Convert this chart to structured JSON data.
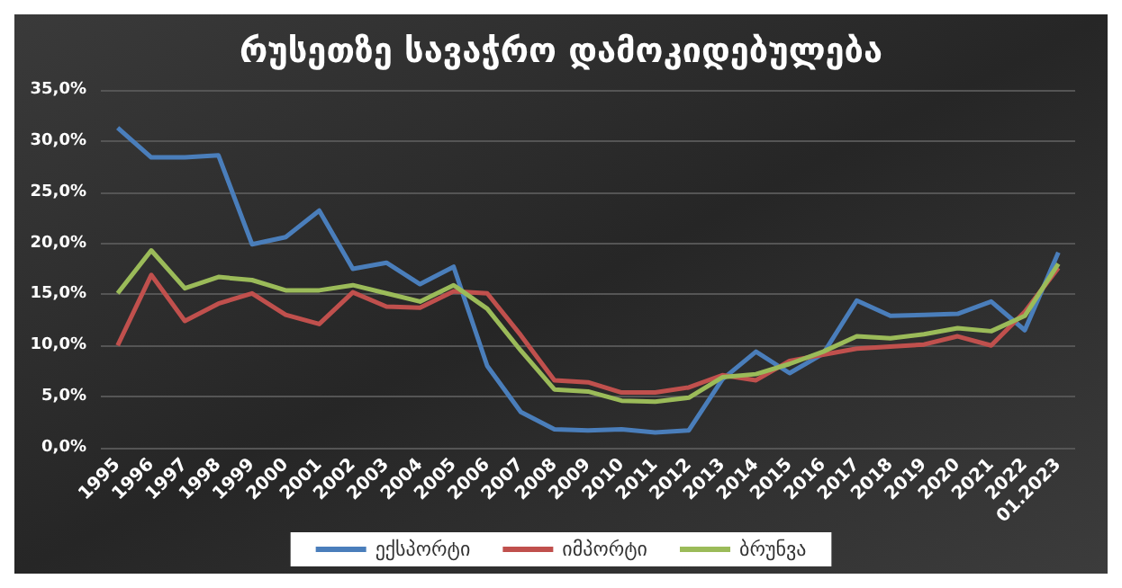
{
  "chart_data": {
    "type": "line",
    "title": "რუსეთზე სავაჭრო დამოკიდებულება",
    "categories": [
      "1995",
      "1996",
      "1997",
      "1998",
      "1999",
      "2000",
      "2001",
      "2002",
      "2003",
      "2004",
      "2005",
      "2006",
      "2007",
      "2008",
      "2009",
      "2010",
      "2011",
      "2012",
      "2013",
      "2014",
      "2015",
      "2016",
      "2017",
      "2018",
      "2019",
      "2020",
      "2021",
      "2022",
      "01.2023"
    ],
    "series": [
      {
        "name": "ექსპორტი",
        "color": "#4a7ebb",
        "values": [
          31.3,
          28.4,
          28.4,
          28.6,
          19.9,
          20.6,
          23.2,
          17.5,
          18.1,
          16.0,
          17.7,
          8.0,
          3.5,
          1.8,
          1.7,
          1.8,
          1.5,
          1.7,
          6.7,
          9.4,
          7.3,
          9.2,
          14.4,
          12.9,
          13.0,
          13.1,
          14.3,
          11.5,
          19.1
        ]
      },
      {
        "name": "იმპორტი",
        "color": "#c0504d",
        "values": [
          10.0,
          16.9,
          12.4,
          14.1,
          15.1,
          13.0,
          12.1,
          15.2,
          13.8,
          13.7,
          15.3,
          15.1,
          11.0,
          6.6,
          6.4,
          5.4,
          5.4,
          5.9,
          7.1,
          6.6,
          8.5,
          9.1,
          9.7,
          9.9,
          10.1,
          10.9,
          10.0,
          13.3,
          17.6
        ]
      },
      {
        "name": "ბრუნვა",
        "color": "#9bbb59",
        "values": [
          15.1,
          19.3,
          15.6,
          16.7,
          16.4,
          15.4,
          15.4,
          15.9,
          15.1,
          14.3,
          15.9,
          13.6,
          9.5,
          5.7,
          5.5,
          4.6,
          4.5,
          4.9,
          6.9,
          7.2,
          8.2,
          9.4,
          10.9,
          10.7,
          11.1,
          11.7,
          11.4,
          12.9,
          18.0
        ]
      }
    ],
    "ylim": [
      0,
      35
    ],
    "yticks": [
      {
        "value": 0,
        "label": "0,0%"
      },
      {
        "value": 5,
        "label": "5,0%"
      },
      {
        "value": 10,
        "label": "10,0%"
      },
      {
        "value": 15,
        "label": "15,0%"
      },
      {
        "value": 20,
        "label": "20,0%"
      },
      {
        "value": 25,
        "label": "25,0%"
      },
      {
        "value": 30,
        "label": "30,0%"
      },
      {
        "value": 35,
        "label": "35,0%"
      }
    ],
    "grid": "y",
    "legend": "bottom",
    "marker": "none",
    "line_style": "solid"
  }
}
